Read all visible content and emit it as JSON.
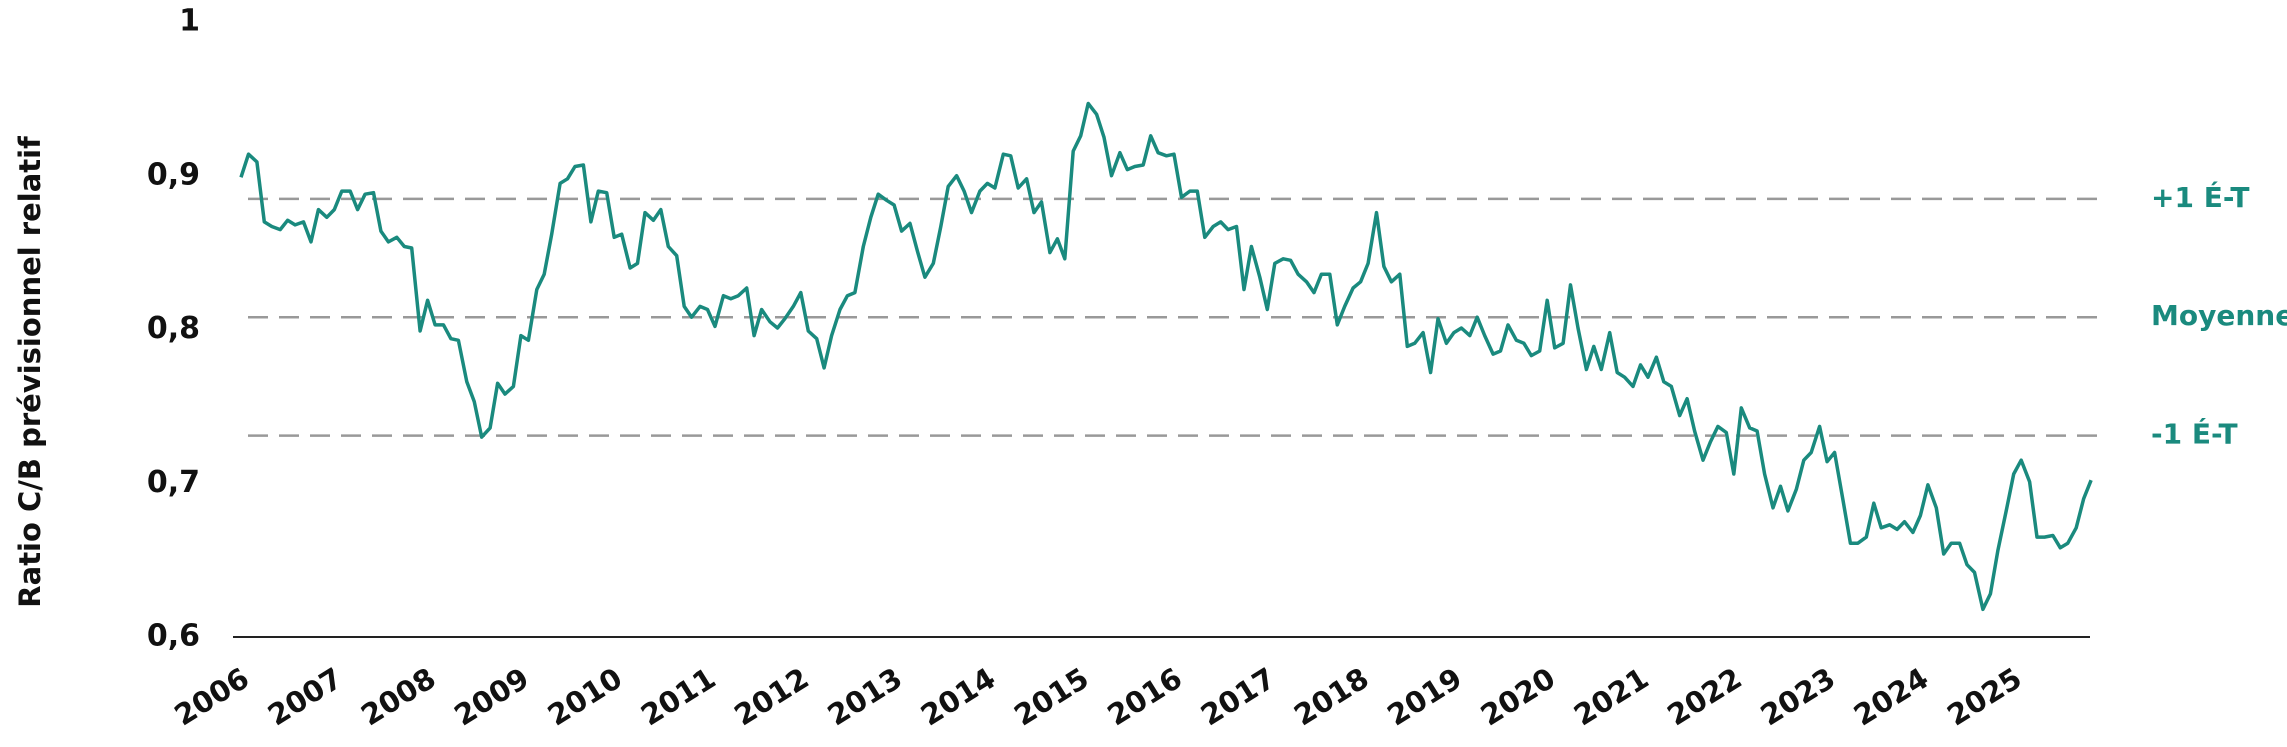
{
  "chart_data": {
    "type": "line",
    "y_label": "Ratio C/B prévisionnel relatif",
    "color": "#1a8a7e",
    "x": [
      2006,
      2006.08,
      2006.17,
      2006.25,
      2006.33,
      2006.42,
      2006.5,
      2006.58,
      2006.67,
      2006.75,
      2006.83,
      2006.92,
      2007,
      2007.08,
      2007.17,
      2007.25,
      2007.33,
      2007.42,
      2007.5,
      2007.58,
      2007.67,
      2007.75,
      2007.83,
      2007.92,
      2008,
      2008.08,
      2008.17,
      2008.25,
      2008.33,
      2008.42,
      2008.5,
      2008.58,
      2008.67,
      2008.75,
      2008.83,
      2008.92,
      2009,
      2009.08,
      2009.17,
      2009.25,
      2009.33,
      2009.42,
      2009.5,
      2009.58,
      2009.67,
      2009.75,
      2009.83,
      2009.92,
      2010,
      2010.08,
      2010.17,
      2010.25,
      2010.33,
      2010.42,
      2010.5,
      2010.58,
      2010.67,
      2010.75,
      2010.83,
      2010.92,
      2011,
      2011.08,
      2011.17,
      2011.25,
      2011.33,
      2011.42,
      2011.5,
      2011.58,
      2011.67,
      2011.75,
      2011.83,
      2011.92,
      2012,
      2012.08,
      2012.17,
      2012.25,
      2012.33,
      2012.42,
      2012.5,
      2012.58,
      2012.67,
      2012.75,
      2012.83,
      2012.92,
      2013,
      2013.08,
      2013.17,
      2013.25,
      2013.33,
      2013.42,
      2013.5,
      2013.58,
      2013.67,
      2013.75,
      2013.83,
      2013.92,
      2014,
      2014.08,
      2014.17,
      2014.25,
      2014.33,
      2014.42,
      2014.5,
      2014.58,
      2014.67,
      2014.75,
      2014.83,
      2014.92,
      2015,
      2015.08,
      2015.17,
      2015.25,
      2015.33,
      2015.42,
      2015.5,
      2015.58,
      2015.67,
      2015.75,
      2015.83,
      2015.92,
      2016,
      2016.08,
      2016.17,
      2016.25,
      2016.33,
      2016.42,
      2016.5,
      2016.58,
      2016.67,
      2016.75,
      2016.83,
      2016.92,
      2017,
      2017.08,
      2017.17,
      2017.25,
      2017.33,
      2017.42,
      2017.5,
      2017.58,
      2017.67,
      2017.75,
      2017.83,
      2017.92,
      2018,
      2018.08,
      2018.17,
      2018.25,
      2018.33,
      2018.42,
      2018.5,
      2018.58,
      2018.67,
      2018.75,
      2018.83,
      2018.92,
      2019,
      2019.08,
      2019.17,
      2019.25,
      2019.33,
      2019.42,
      2019.5,
      2019.58,
      2019.67,
      2019.75,
      2019.83,
      2019.92,
      2020,
      2020.08,
      2020.17,
      2020.25,
      2020.33,
      2020.42,
      2020.5,
      2020.58,
      2020.67,
      2020.75,
      2020.83,
      2020.92,
      2021,
      2021.08,
      2021.17,
      2021.25,
      2021.33,
      2021.42,
      2021.5,
      2021.58,
      2021.67,
      2021.75,
      2021.83,
      2021.92,
      2022,
      2022.08,
      2022.17,
      2022.25,
      2022.33,
      2022.42,
      2022.5,
      2022.58,
      2022.67,
      2022.75,
      2022.83,
      2022.92,
      2023,
      2023.08,
      2023.17,
      2023.25,
      2023.33,
      2023.42,
      2023.5,
      2023.58,
      2023.67,
      2023.75,
      2023.83,
      2023.92,
      2024,
      2024.08,
      2024.17,
      2024.25,
      2024.33,
      2024.42,
      2024.5,
      2024.58,
      2024.67,
      2024.75,
      2024.83,
      2024.92,
      2025,
      2025.08,
      2025.17,
      2025.25,
      2025.33,
      2025.42,
      2025.5,
      2025.58,
      2025.67,
      2025.75,
      2025.83
    ],
    "values": [
      0.899,
      0.914,
      0.909,
      0.87,
      0.867,
      0.865,
      0.871,
      0.868,
      0.87,
      0.857,
      0.878,
      0.873,
      0.878,
      0.89,
      0.89,
      0.878,
      0.888,
      0.889,
      0.864,
      0.857,
      0.86,
      0.854,
      0.853,
      0.799,
      0.819,
      0.803,
      0.803,
      0.794,
      0.793,
      0.766,
      0.753,
      0.73,
      0.736,
      0.765,
      0.758,
      0.763,
      0.796,
      0.793,
      0.826,
      0.836,
      0.862,
      0.895,
      0.898,
      0.906,
      0.907,
      0.87,
      0.89,
      0.889,
      0.86,
      0.862,
      0.84,
      0.843,
      0.876,
      0.871,
      0.878,
      0.854,
      0.848,
      0.815,
      0.808,
      0.815,
      0.813,
      0.802,
      0.822,
      0.82,
      0.822,
      0.827,
      0.796,
      0.813,
      0.805,
      0.801,
      0.807,
      0.815,
      0.824,
      0.799,
      0.794,
      0.775,
      0.796,
      0.813,
      0.822,
      0.824,
      0.854,
      0.873,
      0.888,
      0.884,
      0.881,
      0.864,
      0.869,
      0.851,
      0.834,
      0.843,
      0.867,
      0.893,
      0.9,
      0.89,
      0.876,
      0.89,
      0.895,
      0.892,
      0.914,
      0.913,
      0.892,
      0.898,
      0.876,
      0.883,
      0.85,
      0.859,
      0.846,
      0.916,
      0.926,
      0.947,
      0.94,
      0.925,
      0.9,
      0.915,
      0.904,
      0.906,
      0.907,
      0.926,
      0.915,
      0.913,
      0.914,
      0.886,
      0.89,
      0.89,
      0.86,
      0.867,
      0.87,
      0.865,
      0.867,
      0.826,
      0.854,
      0.834,
      0.813,
      0.843,
      0.846,
      0.845,
      0.836,
      0.831,
      0.824,
      0.836,
      0.836,
      0.803,
      0.815,
      0.827,
      0.831,
      0.843,
      0.876,
      0.841,
      0.831,
      0.836,
      0.789,
      0.791,
      0.798,
      0.772,
      0.807,
      0.791,
      0.798,
      0.801,
      0.796,
      0.808,
      0.796,
      0.784,
      0.786,
      0.803,
      0.793,
      0.791,
      0.783,
      0.786,
      0.819,
      0.788,
      0.791,
      0.829,
      0.801,
      0.774,
      0.789,
      0.774,
      0.798,
      0.772,
      0.769,
      0.763,
      0.777,
      0.769,
      0.782,
      0.766,
      0.763,
      0.744,
      0.755,
      0.734,
      0.715,
      0.727,
      0.737,
      0.733,
      0.706,
      0.749,
      0.736,
      0.734,
      0.706,
      0.684,
      0.698,
      0.682,
      0.696,
      0.715,
      0.72,
      0.737,
      0.714,
      0.72,
      0.689,
      0.661,
      0.661,
      0.665,
      0.687,
      0.671,
      0.673,
      0.67,
      0.675,
      0.668,
      0.679,
      0.699,
      0.684,
      0.654,
      0.661,
      0.661,
      0.647,
      0.642,
      0.618,
      0.628,
      0.656,
      0.682,
      0.706,
      0.715,
      0.701,
      0.665,
      0.665,
      0.666,
      0.658,
      0.661,
      0.671,
      0.69,
      0.702
    ],
    "xlim": [
      2006,
      2026
    ],
    "xticks": [
      2006,
      2007,
      2008,
      2009,
      2010,
      2011,
      2012,
      2013,
      2014,
      2015,
      2016,
      2017,
      2018,
      2019,
      2020,
      2021,
      2022,
      2023,
      2024,
      2025
    ],
    "ylim": [
      0.6,
      1
    ],
    "yticks": [
      {
        "value": 0.6,
        "label": "0,6"
      },
      {
        "value": 0.7,
        "label": "0,7"
      },
      {
        "value": 0.8,
        "label": "0,8"
      },
      {
        "value": 0.9,
        "label": "0,9"
      },
      1
    ],
    "reference_lines": [
      {
        "label": "+1 É-T",
        "value": 0.885
      },
      {
        "label": "Moyenne",
        "value": 0.808
      },
      {
        "label": "-1 É-T",
        "value": 0.731
      }
    ],
    "grid": false
  }
}
